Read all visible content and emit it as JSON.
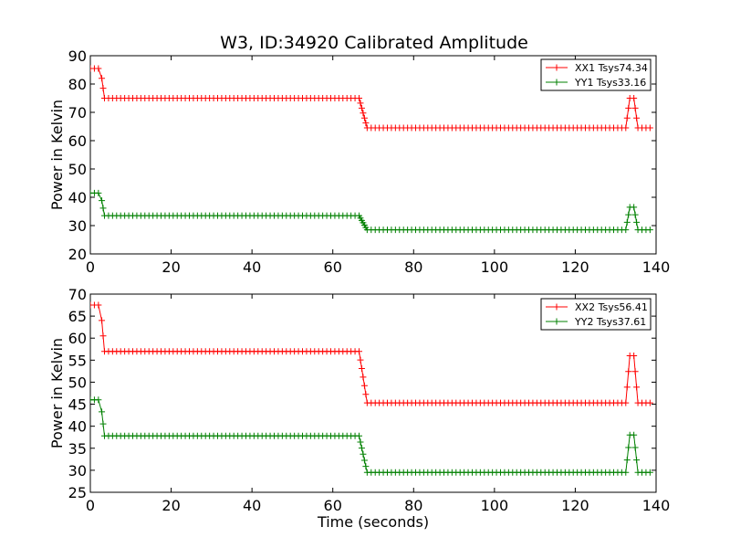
{
  "figure_title": "W3, ID:34920 Calibrated Amplitude",
  "chart_data": [
    {
      "type": "line",
      "title": "W3, ID:34920 Calibrated Amplitude",
      "xlabel": "",
      "ylabel": "Power in Kelvin",
      "xlim": [
        0,
        140
      ],
      "ylim": [
        20,
        90
      ],
      "xticks": [
        0,
        20,
        40,
        60,
        80,
        100,
        120,
        140
      ],
      "yticks": [
        20,
        30,
        40,
        50,
        60,
        70,
        80,
        90
      ],
      "legend_position": "top-right",
      "grid": false,
      "series": [
        {
          "name": "XX1 Tsys74.34",
          "color": "#ff0000",
          "segments": [
            {
              "x0": 0,
              "x1": 2.5,
              "y": 85.5
            },
            {
              "x0": 3.5,
              "x1": 66.5,
              "y": 75.0
            },
            {
              "x0": 68.5,
              "x1": 132.5,
              "y": 64.5
            },
            {
              "x0": 133.5,
              "x1": 134.5,
              "y": 75.0
            },
            {
              "x0": 135.5,
              "x1": 138.5,
              "y": 64.5
            }
          ]
        },
        {
          "name": "YY1 Tsys33.16",
          "color": "#008000",
          "segments": [
            {
              "x0": 0,
              "x1": 2.5,
              "y": 41.5
            },
            {
              "x0": 3.5,
              "x1": 66.5,
              "y": 33.5
            },
            {
              "x0": 68.5,
              "x1": 132.5,
              "y": 28.5
            },
            {
              "x0": 133.5,
              "x1": 134.5,
              "y": 36.5
            },
            {
              "x0": 135.5,
              "x1": 138.5,
              "y": 28.5
            }
          ]
        }
      ]
    },
    {
      "type": "line",
      "title": "",
      "xlabel": "Time (seconds)",
      "ylabel": "Power in Kelvin",
      "xlim": [
        0,
        140
      ],
      "ylim": [
        25,
        70
      ],
      "xticks": [
        0,
        20,
        40,
        60,
        80,
        100,
        120,
        140
      ],
      "yticks": [
        25,
        30,
        35,
        40,
        45,
        50,
        55,
        60,
        65,
        70
      ],
      "legend_position": "top-right",
      "grid": false,
      "series": [
        {
          "name": "XX2 Tsys56.41",
          "color": "#ff0000",
          "segments": [
            {
              "x0": 0,
              "x1": 2.5,
              "y": 67.5
            },
            {
              "x0": 3.5,
              "x1": 66.5,
              "y": 57.0
            },
            {
              "x0": 68.5,
              "x1": 132.5,
              "y": 45.3
            },
            {
              "x0": 133.5,
              "x1": 134.5,
              "y": 56.0
            },
            {
              "x0": 135.5,
              "x1": 138.5,
              "y": 45.3
            }
          ]
        },
        {
          "name": "YY2 Tsys37.61",
          "color": "#008000",
          "segments": [
            {
              "x0": 0,
              "x1": 2.5,
              "y": 46.0
            },
            {
              "x0": 3.5,
              "x1": 66.5,
              "y": 37.8
            },
            {
              "x0": 68.5,
              "x1": 132.5,
              "y": 29.5
            },
            {
              "x0": 133.5,
              "x1": 134.5,
              "y": 38.0
            },
            {
              "x0": 135.5,
              "x1": 138.5,
              "y": 29.5
            }
          ]
        }
      ]
    }
  ]
}
